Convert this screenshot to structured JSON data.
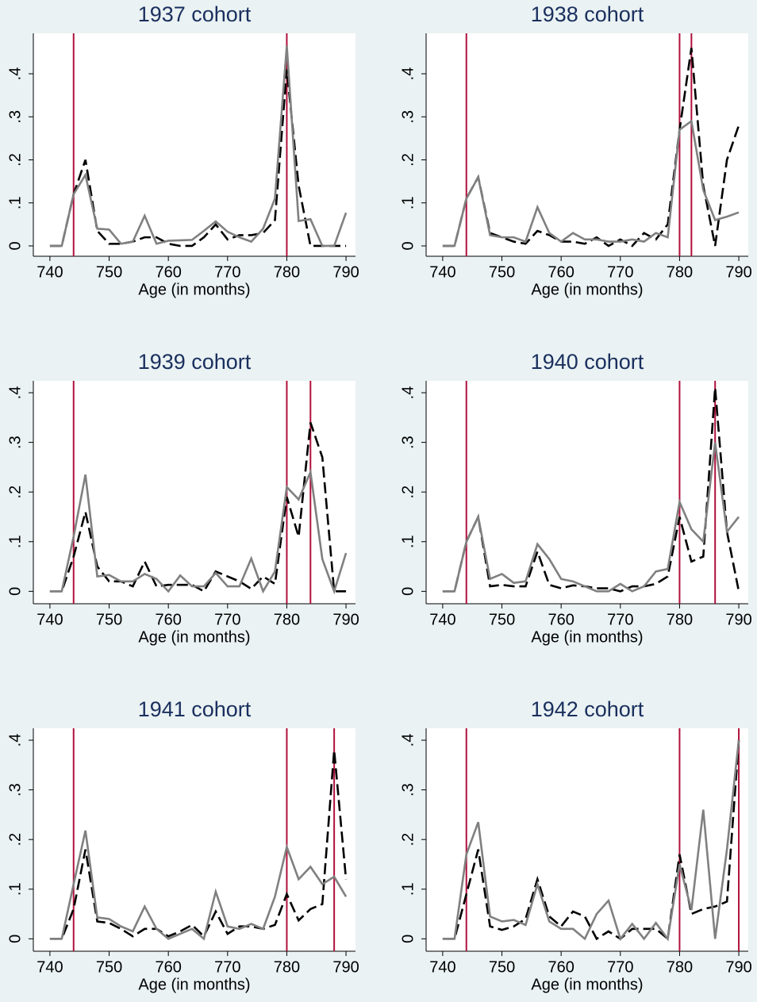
{
  "chart_data": [
    {
      "type": "line",
      "title": "1937 cohort",
      "xlabel": "Age (in months)",
      "x": [
        740,
        742,
        744,
        746,
        748,
        750,
        752,
        754,
        756,
        758,
        760,
        762,
        764,
        766,
        768,
        770,
        772,
        774,
        776,
        778,
        780,
        782,
        784,
        786,
        788,
        790
      ],
      "series": [
        {
          "color": "#000000",
          "dash": true,
          "values": [
            0,
            0,
            0.12,
            0.2,
            0.035,
            0.005,
            0.005,
            0.01,
            0.02,
            0.02,
            0.005,
            0,
            0,
            0.02,
            0.05,
            0.015,
            0.025,
            0.025,
            0.03,
            0.06,
            0.41,
            0.14,
            0,
            0,
            0,
            0
          ]
        },
        {
          "color": "#808080",
          "dash": false,
          "values": [
            0,
            0,
            0.12,
            0.165,
            0.04,
            0.038,
            0.005,
            0.01,
            0.07,
            0.005,
            0.012,
            0.013,
            0.014,
            0.035,
            0.057,
            0.033,
            0.02,
            0.01,
            0.04,
            0.11,
            0.465,
            0.058,
            0.062,
            0,
            0,
            0.077
          ]
        }
      ],
      "vlines": [
        744,
        780
      ],
      "vline_color": "#b0103c",
      "xlim": [
        737.2,
        791.6
      ],
      "ylim": [
        -0.024,
        0.494
      ],
      "xticks": [
        740,
        750,
        760,
        770,
        780,
        790
      ],
      "yticks": [
        0,
        {
          "value": 0.1,
          "label": ".1"
        },
        {
          "value": 0.2,
          "label": ".2"
        },
        {
          "value": 0.3,
          "label": ".3"
        },
        {
          "value": 0.4,
          "label": ".4"
        }
      ]
    },
    {
      "type": "line",
      "title": "1938 cohort",
      "xlabel": "Age (in months)",
      "x": [
        740,
        742,
        744,
        746,
        748,
        750,
        752,
        754,
        756,
        758,
        760,
        762,
        764,
        766,
        768,
        770,
        772,
        774,
        776,
        778,
        780,
        782,
        784,
        786,
        788,
        790
      ],
      "series": [
        {
          "color": "#000000",
          "dash": true,
          "values": [
            0,
            0,
            0.11,
            0.16,
            0.03,
            0.02,
            0.01,
            0.005,
            0.035,
            0.025,
            0.01,
            0.01,
            0.005,
            0.02,
            0,
            0.015,
            0,
            0.03,
            0.015,
            0.05,
            0.27,
            0.46,
            0.14,
            0,
            0.2,
            0.28
          ]
        },
        {
          "color": "#808080",
          "dash": false,
          "values": [
            0,
            0,
            0.11,
            0.16,
            0.025,
            0.02,
            0.02,
            0.01,
            0.09,
            0.03,
            0.01,
            0.03,
            0.015,
            0.015,
            0.01,
            0.01,
            0.015,
            0.01,
            0.03,
            0.02,
            0.27,
            0.29,
            0.13,
            0.06,
            0.068,
            0.078
          ]
        }
      ],
      "vlines": [
        744,
        780,
        782
      ],
      "vline_color": "#b0103c",
      "xlim": [
        737.2,
        791.6
      ],
      "ylim": [
        -0.024,
        0.494
      ],
      "xticks": [
        740,
        750,
        760,
        770,
        780,
        790
      ],
      "yticks": [
        0,
        {
          "value": 0.1,
          "label": ".1"
        },
        {
          "value": 0.2,
          "label": ".2"
        },
        {
          "value": 0.3,
          "label": ".3"
        },
        {
          "value": 0.4,
          "label": ".4"
        }
      ]
    },
    {
      "type": "line",
      "title": "1939 cohort",
      "xlabel": "Age (in months)",
      "x": [
        740,
        742,
        744,
        746,
        748,
        750,
        752,
        754,
        756,
        758,
        760,
        762,
        764,
        766,
        768,
        770,
        772,
        774,
        776,
        778,
        780,
        782,
        784,
        786,
        788,
        790
      ],
      "series": [
        {
          "color": "#000000",
          "dash": true,
          "values": [
            0,
            0,
            0.07,
            0.16,
            0.05,
            0.02,
            0.02,
            0.01,
            0.06,
            0.01,
            0.013,
            0.013,
            0.013,
            0,
            0.04,
            0.03,
            0.02,
            0.005,
            0.03,
            0.015,
            0.19,
            0.11,
            0.34,
            0.27,
            0,
            0
          ]
        },
        {
          "color": "#808080",
          "dash": false,
          "values": [
            0,
            0,
            0.11,
            0.235,
            0.03,
            0.033,
            0.02,
            0.02,
            0.035,
            0.025,
            0,
            0.032,
            0.01,
            0.01,
            0.037,
            0.01,
            0.01,
            0.066,
            0,
            0.04,
            0.21,
            0.185,
            0.24,
            0.065,
            0,
            0.077
          ]
        }
      ],
      "vlines": [
        744,
        780,
        784
      ],
      "vline_color": "#b0103c",
      "xlim": [
        737.2,
        791.6
      ],
      "ylim": [
        -0.025,
        0.424
      ],
      "xticks": [
        740,
        750,
        760,
        770,
        780,
        790
      ],
      "yticks": [
        0,
        {
          "value": 0.1,
          "label": ".1"
        },
        {
          "value": 0.2,
          "label": ".2"
        },
        {
          "value": 0.3,
          "label": ".3"
        },
        {
          "value": 0.4,
          "label": ".4"
        }
      ]
    },
    {
      "type": "line",
      "title": "1940 cohort",
      "xlabel": "Age (in months)",
      "x": [
        740,
        742,
        744,
        746,
        748,
        750,
        752,
        754,
        756,
        758,
        760,
        762,
        764,
        766,
        768,
        770,
        772,
        774,
        776,
        778,
        780,
        782,
        784,
        786,
        788,
        790
      ],
      "series": [
        {
          "color": "#000000",
          "dash": true,
          "values": [
            0,
            0,
            0.1,
            0.15,
            0.01,
            0.013,
            0.01,
            0.01,
            0.08,
            0.013,
            0.006,
            0.012,
            0.01,
            0.006,
            0.006,
            0,
            0.01,
            0.01,
            0.015,
            0.03,
            0.15,
            0.06,
            0.07,
            0.41,
            0.12,
            0
          ]
        },
        {
          "color": "#808080",
          "dash": false,
          "values": [
            0,
            0,
            0.1,
            0.15,
            0.025,
            0.035,
            0.017,
            0.02,
            0.095,
            0.065,
            0.025,
            0.02,
            0.01,
            0,
            0,
            0.015,
            0,
            0.01,
            0.04,
            0.045,
            0.18,
            0.125,
            0.1,
            0.3,
            0.12,
            0.15
          ]
        }
      ],
      "vlines": [
        744,
        780,
        786
      ],
      "vline_color": "#b0103c",
      "xlim": [
        737.2,
        791.6
      ],
      "ylim": [
        -0.025,
        0.424
      ],
      "xticks": [
        740,
        750,
        760,
        770,
        780,
        790
      ],
      "yticks": [
        0,
        {
          "value": 0.1,
          "label": ".1"
        },
        {
          "value": 0.2,
          "label": ".2"
        },
        {
          "value": 0.3,
          "label": ".3"
        },
        {
          "value": 0.4,
          "label": ".4"
        }
      ]
    },
    {
      "type": "line",
      "title": "1941 cohort",
      "xlabel": "Age (in months)",
      "x": [
        740,
        742,
        744,
        746,
        748,
        750,
        752,
        754,
        756,
        758,
        760,
        762,
        764,
        766,
        768,
        770,
        772,
        774,
        776,
        778,
        780,
        782,
        784,
        786,
        788,
        790
      ],
      "series": [
        {
          "color": "#000000",
          "dash": true,
          "values": [
            0,
            0,
            0.06,
            0.18,
            0.035,
            0.032,
            0.02,
            0.005,
            0.02,
            0.02,
            0.005,
            0.015,
            0.028,
            0.005,
            0.055,
            0.01,
            0.025,
            0.025,
            0.02,
            0.028,
            0.09,
            0.037,
            0.06,
            0.07,
            0.38,
            0.12
          ]
        },
        {
          "color": "#808080",
          "dash": false,
          "values": [
            0,
            0,
            0.11,
            0.218,
            0.043,
            0.04,
            0.025,
            0.015,
            0.065,
            0.02,
            0,
            0.01,
            0.02,
            0,
            0.095,
            0.025,
            0.02,
            0.03,
            0.02,
            0.085,
            0.185,
            0.12,
            0.145,
            0.11,
            0.125,
            0.085
          ]
        }
      ],
      "vlines": [
        744,
        780,
        788
      ],
      "vline_color": "#b0103c",
      "xlim": [
        737.2,
        791.6
      ],
      "ylim": [
        -0.025,
        0.424
      ],
      "xticks": [
        740,
        750,
        760,
        770,
        780,
        790
      ],
      "yticks": [
        0,
        {
          "value": 0.1,
          "label": ".1"
        },
        {
          "value": 0.2,
          "label": ".2"
        },
        {
          "value": 0.3,
          "label": ".3"
        },
        {
          "value": 0.4,
          "label": ".4"
        }
      ]
    },
    {
      "type": "line",
      "title": "1942 cohort",
      "xlabel": "Age (in months)",
      "x": [
        740,
        742,
        744,
        746,
        748,
        750,
        752,
        754,
        756,
        758,
        760,
        762,
        764,
        766,
        768,
        770,
        772,
        774,
        776,
        778,
        780,
        782,
        784,
        786,
        788,
        790
      ],
      "series": [
        {
          "color": "#000000",
          "dash": true,
          "values": [
            0,
            0,
            0.09,
            0.18,
            0.025,
            0.018,
            0.025,
            0.04,
            0.12,
            0.045,
            0.025,
            0.055,
            0.045,
            0,
            0.015,
            0,
            0.02,
            0.02,
            0.02,
            0,
            0.17,
            0.05,
            0.06,
            0.065,
            0.075,
            0.4
          ]
        },
        {
          "color": "#808080",
          "dash": false,
          "values": [
            0,
            0,
            0.17,
            0.235,
            0.045,
            0.035,
            0.038,
            0.028,
            0.11,
            0.035,
            0.02,
            0.02,
            0,
            0.05,
            0.077,
            0,
            0.03,
            0,
            0.032,
            0,
            0.15,
            0.058,
            0.26,
            0,
            0.18,
            0.4
          ]
        }
      ],
      "vlines": [
        744,
        780,
        790
      ],
      "vline_color": "#b0103c",
      "xlim": [
        737.2,
        791.6
      ],
      "ylim": [
        -0.025,
        0.424
      ],
      "xticks": [
        740,
        750,
        760,
        770,
        780,
        790
      ],
      "yticks": [
        0,
        {
          "value": 0.1,
          "label": ".1"
        },
        {
          "value": 0.2,
          "label": ".2"
        },
        {
          "value": 0.3,
          "label": ".3"
        },
        {
          "value": 0.4,
          "label": ".4"
        }
      ]
    }
  ]
}
